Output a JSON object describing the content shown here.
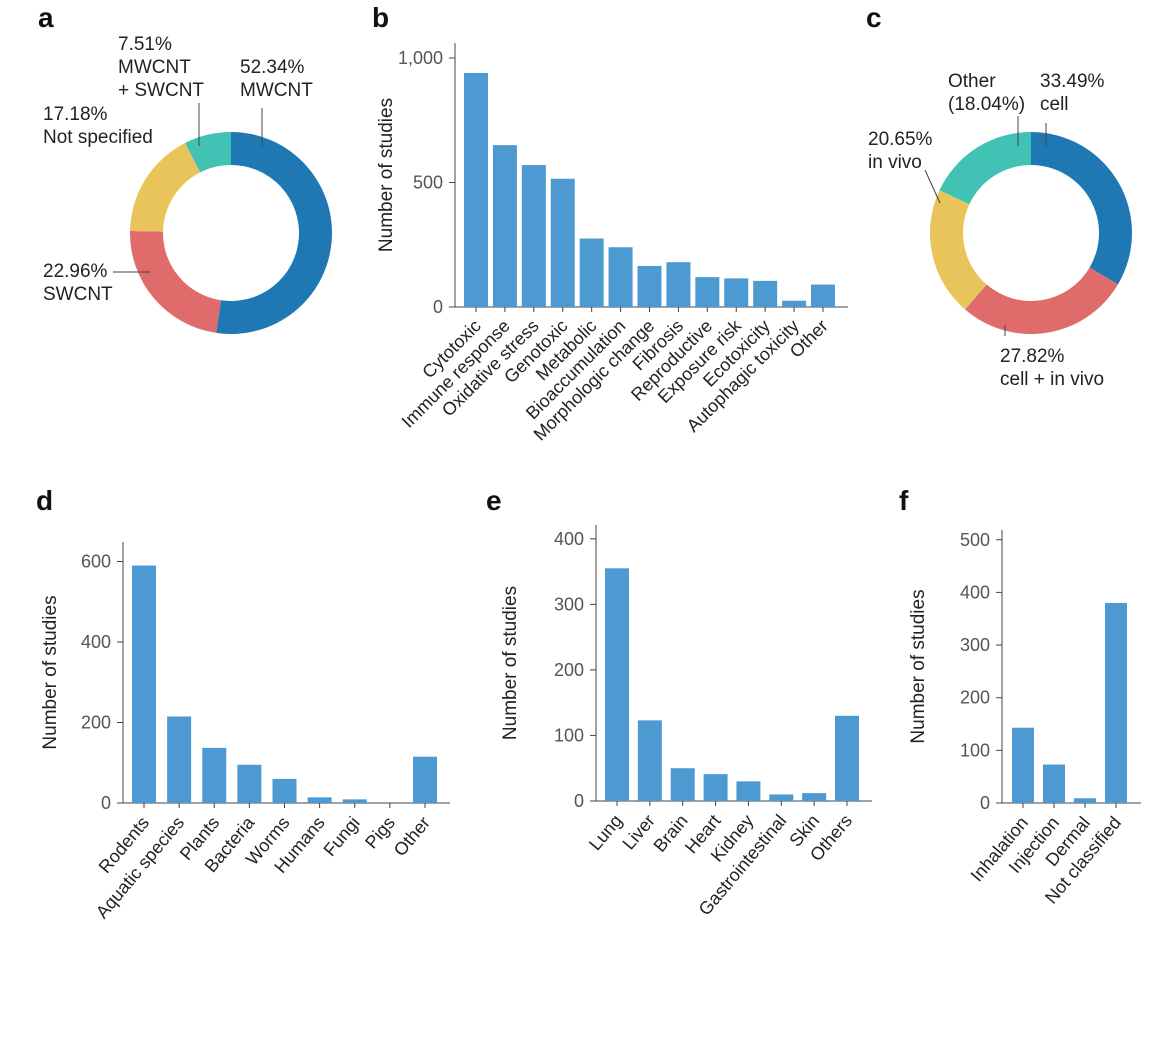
{
  "colors": {
    "bar": "#4d9ad2",
    "blue": "#1f77b4",
    "red": "#e06b6b",
    "yellow": "#e9c45a",
    "teal": "#41c2b5"
  },
  "chart_data": [
    {
      "id": "a",
      "panel_label": "a",
      "type": "pie",
      "categories": [
        "MWCNT",
        "SWCNT",
        "Not specified",
        "MWCNT + SWCNT"
      ],
      "values": [
        52.34,
        22.96,
        17.18,
        7.51
      ],
      "labels": [
        [
          "52.34%",
          "MWCNT"
        ],
        [
          "22.96%",
          "SWCNT"
        ],
        [
          "17.18%",
          "Not specified"
        ],
        [
          "7.51%",
          "MWCNT",
          "+ SWCNT"
        ]
      ]
    },
    {
      "id": "b",
      "panel_label": "b",
      "type": "bar",
      "ylabel": "Number of studies",
      "ylim": [
        0,
        1050
      ],
      "yticks": [
        0,
        500,
        1000
      ],
      "ytick_labels": [
        "0",
        "500",
        "1,000"
      ],
      "categories": [
        "Cytotoxic",
        "Immune response",
        "Oxidative stress",
        "Genotoxic",
        "Metabolic",
        "Bioaccumulation",
        "Morphologic change",
        "Fibrosis",
        "Reproductive",
        "Exposure risk",
        "Ecotoxicity",
        "Autophagic toxicity",
        "Other"
      ],
      "values": [
        940,
        650,
        570,
        515,
        275,
        240,
        165,
        180,
        120,
        115,
        105,
        25,
        90
      ]
    },
    {
      "id": "c",
      "panel_label": "c",
      "type": "pie",
      "categories": [
        "cell",
        "cell + in vivo",
        "in vivo",
        "Other"
      ],
      "values": [
        33.49,
        27.82,
        20.65,
        18.04
      ],
      "labels": [
        [
          "33.49%",
          "cell"
        ],
        [
          "27.82%",
          "cell + in vivo"
        ],
        [
          "20.65%",
          "in vivo"
        ],
        [
          "Other",
          "(18.04%)"
        ]
      ]
    },
    {
      "id": "d",
      "panel_label": "d",
      "type": "bar",
      "ylabel": "Number of studies",
      "ylim": [
        0,
        650
      ],
      "yticks": [
        0,
        200,
        400,
        600
      ],
      "ytick_labels": [
        "0",
        "200",
        "400",
        "600"
      ],
      "categories": [
        "Rodents",
        "Aquatic species",
        "Plants",
        "Bacteria",
        "Worms",
        "Humans",
        "Fungi",
        "Pigs",
        "Other"
      ],
      "values": [
        590,
        215,
        137,
        95,
        60,
        14,
        9,
        0,
        115
      ]
    },
    {
      "id": "e",
      "panel_label": "e",
      "type": "bar",
      "ylabel": "Number of studies",
      "ylim": [
        0,
        415
      ],
      "yticks": [
        0,
        100,
        200,
        300,
        400
      ],
      "ytick_labels": [
        "0",
        "100",
        "200",
        "300",
        "400"
      ],
      "categories": [
        "Lung",
        "Liver",
        "Brain",
        "Heart",
        "Kidney",
        "Gastrointestinal",
        "Skin",
        "Others"
      ],
      "values": [
        355,
        123,
        50,
        41,
        30,
        10,
        12,
        130
      ]
    },
    {
      "id": "f",
      "panel_label": "f",
      "type": "bar",
      "ylabel": "Number of studies",
      "ylim": [
        0,
        515
      ],
      "yticks": [
        0,
        100,
        200,
        300,
        400,
        500
      ],
      "ytick_labels": [
        "0",
        "100",
        "200",
        "300",
        "400",
        "500"
      ],
      "categories": [
        "Inhalation",
        "Injection",
        "Dermal",
        "Not classified"
      ],
      "values": [
        143,
        73,
        9,
        380
      ]
    }
  ]
}
